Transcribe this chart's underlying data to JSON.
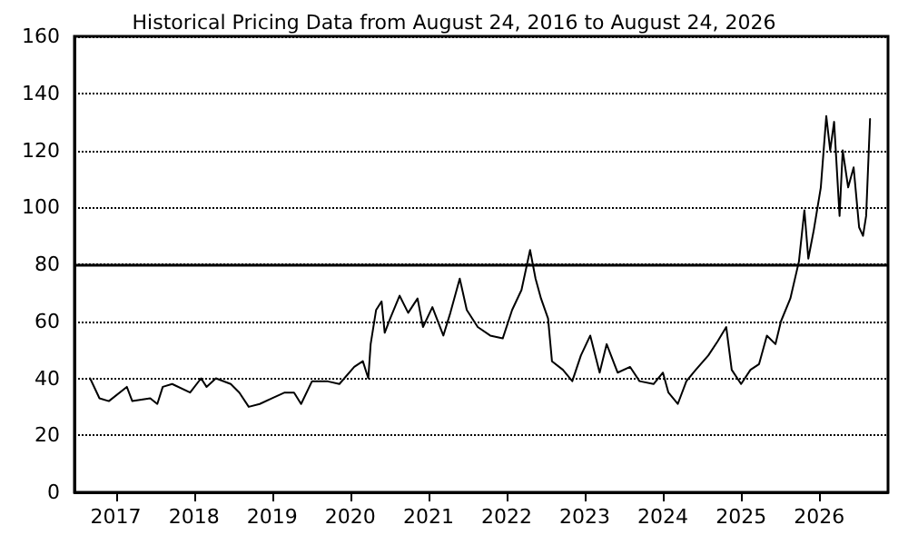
{
  "chart_data": {
    "type": "line",
    "title": "Historical Pricing Data from August 24, 2016 to August 24, 2026",
    "x": [
      2016.67,
      2016.79,
      2016.91,
      2017.14,
      2017.21,
      2017.44,
      2017.53,
      2017.6,
      2017.72,
      2017.95,
      2018.09,
      2018.16,
      2018.28,
      2018.47,
      2018.58,
      2018.7,
      2018.84,
      2019.0,
      2019.16,
      2019.28,
      2019.37,
      2019.51,
      2019.7,
      2019.86,
      2020.05,
      2020.16,
      2020.23,
      2020.26,
      2020.33,
      2020.4,
      2020.44,
      2020.51,
      2020.63,
      2020.74,
      2020.86,
      2020.93,
      2021.05,
      2021.19,
      2021.28,
      2021.4,
      2021.49,
      2021.63,
      2021.79,
      2021.95,
      2022.07,
      2022.19,
      2022.3,
      2022.37,
      2022.44,
      2022.53,
      2022.58,
      2022.72,
      2022.84,
      2022.95,
      2023.07,
      2023.19,
      2023.28,
      2023.42,
      2023.58,
      2023.7,
      2023.88,
      2024.0,
      2024.07,
      2024.19,
      2024.3,
      2024.42,
      2024.58,
      2024.7,
      2024.81,
      2024.88,
      2025.0,
      2025.12,
      2025.23,
      2025.33,
      2025.44,
      2025.51,
      2025.63,
      2025.74,
      2025.81,
      2025.86,
      2025.93,
      2026.02,
      2026.09,
      2026.14,
      2026.19,
      2026.26,
      2026.3,
      2026.37,
      2026.44,
      2026.51,
      2026.56,
      2026.6,
      2026.65
    ],
    "series": [
      {
        "color": "#000000",
        "values": [
          40,
          33,
          32,
          37,
          32,
          33,
          31,
          37,
          38,
          35,
          40,
          37,
          40,
          38,
          35,
          30,
          31,
          33,
          35,
          35,
          31,
          39,
          39,
          38,
          44,
          46,
          40,
          52,
          64,
          67,
          56,
          61,
          69,
          63,
          68,
          58,
          65,
          55,
          63,
          75,
          64,
          58,
          55,
          54,
          64,
          71,
          85,
          75,
          68,
          61,
          46,
          43,
          39,
          48,
          55,
          42,
          52,
          42,
          44,
          39,
          38,
          42,
          35,
          31,
          39,
          43,
          48,
          53,
          58,
          43,
          38,
          43,
          45,
          55,
          52,
          60,
          68,
          81,
          99,
          82,
          92,
          107,
          132,
          120,
          130,
          97,
          120,
          107,
          114,
          93,
          90,
          97,
          131
        ]
      }
    ],
    "xlim": [
      2016.47,
      2026.88
    ],
    "xticks": [
      2017,
      2018,
      2019,
      2020,
      2021,
      2022,
      2023,
      2024,
      2025,
      2026
    ],
    "ylim": [
      0,
      160
    ],
    "yticks": [
      0,
      20,
      40,
      60,
      80,
      100,
      120,
      140,
      160
    ],
    "grid": "y",
    "marker": "none",
    "line_style": "solid",
    "ref_lines": [
      {
        "axis": "y",
        "value": 80,
        "color": "#000000"
      }
    ]
  }
}
